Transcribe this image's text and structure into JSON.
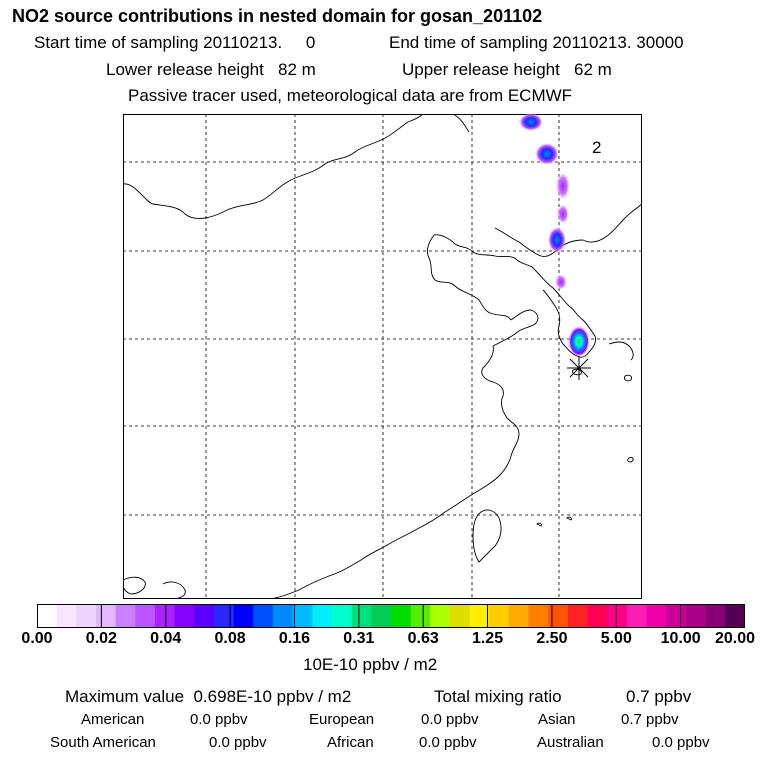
{
  "header": {
    "title": "NO2 source contributions in nested domain for gosan_201102",
    "start": "Start time of sampling 20110213.     0",
    "end": "End time of sampling 20110213. 30000",
    "lower_height": "Lower release height   82 m",
    "upper_height": "Upper release height   62 m",
    "note": "Passive tracer used, meteorological data are from ECMWF"
  },
  "map": {
    "label": "2",
    "marker": "receptor-asterisk"
  },
  "colorbar": {
    "colors": [
      "#ffffff",
      "#f8e6ff",
      "#eed2ff",
      "#e2b8ff",
      "#cc7fff",
      "#bb55ff",
      "#aa22ff",
      "#8800ff",
      "#5a00ff",
      "#2828ff",
      "#0000ff",
      "#0050ff",
      "#0088ff",
      "#00bbff",
      "#00eeff",
      "#00ffcc",
      "#00e080",
      "#00cc55",
      "#00dd00",
      "#55ee00",
      "#aaff00",
      "#dddd00",
      "#ffee00",
      "#ffcc00",
      "#ffaa00",
      "#ff8000",
      "#ff5500",
      "#ff2222",
      "#ff0055",
      "#ff0088",
      "#ff1eb4",
      "#ee00aa",
      "#cc0099",
      "#aa0088",
      "#880077",
      "#550055"
    ],
    "ticks": [
      "0.00",
      "0.02",
      "0.04",
      "0.08",
      "0.16",
      "0.31",
      "0.63",
      "1.25",
      "2.50",
      "5.00",
      "10.00",
      "20.00"
    ],
    "unit": "10E-10 ppbv / m2"
  },
  "stats": {
    "max_label": "Maximum value  0.698E-10 ppbv / m2",
    "total_label": "Total mixing ratio",
    "total_value": "0.7 ppbv",
    "regions": [
      {
        "name": "American",
        "value": "0.0 ppbv"
      },
      {
        "name": "European",
        "value": "0.0 ppbv"
      },
      {
        "name": "Asian",
        "value": "0.7 ppbv"
      },
      {
        "name": "South American",
        "value": "0.0 ppbv"
      },
      {
        "name": "African",
        "value": "0.0 ppbv"
      },
      {
        "name": "Australian",
        "value": "0.0 ppbv"
      }
    ]
  }
}
